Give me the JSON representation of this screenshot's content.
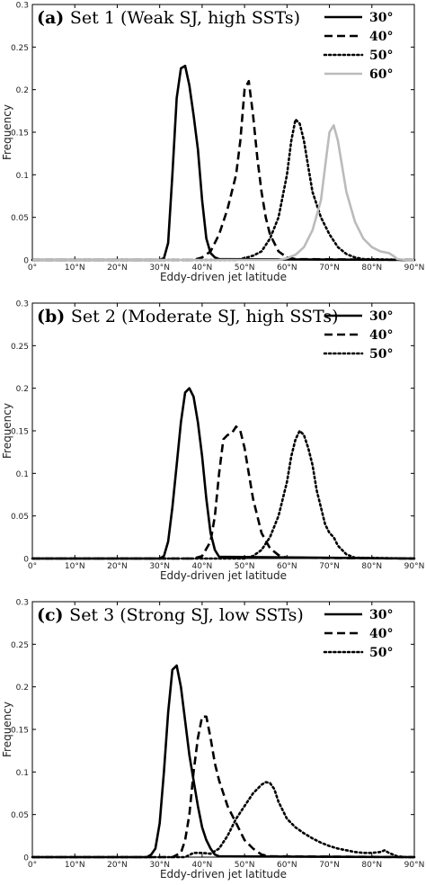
{
  "chart_data": [
    {
      "type": "line",
      "title_tag": "(a)",
      "title": "Set 1 (Weak SJ, high SSTs)",
      "xlabel": "Eddy-driven jet latitude",
      "ylabel": "Frequency",
      "xlim": [
        0,
        90
      ],
      "ylim": [
        0,
        0.3
      ],
      "xticks": [
        "0°",
        "10°N",
        "20°N",
        "30°N",
        "40°N",
        "50°N",
        "60°N",
        "70°N",
        "80°N",
        "90°N"
      ],
      "yticks": [
        "0",
        "0.05",
        "0.1",
        "0.15",
        "0.2",
        "0.25",
        "0.3"
      ],
      "legend_position": "top-right",
      "series": [
        {
          "name": "30°",
          "style": "solid",
          "color": "#000000",
          "x": [
            0,
            30,
            31,
            32,
            33,
            34,
            35,
            36,
            37,
            38,
            39,
            40,
            41,
            42,
            43,
            44,
            90
          ],
          "y": [
            0,
            0,
            0.002,
            0.02,
            0.1,
            0.19,
            0.225,
            0.228,
            0.205,
            0.17,
            0.13,
            0.07,
            0.025,
            0.008,
            0.003,
            0.001,
            0
          ]
        },
        {
          "name": "40°",
          "style": "dashed",
          "color": "#000000",
          "x": [
            0,
            38,
            40,
            42,
            44,
            46,
            48,
            49,
            50,
            51,
            52,
            53,
            54,
            55,
            56,
            58,
            60,
            62,
            90
          ],
          "y": [
            0,
            0,
            0.003,
            0.01,
            0.03,
            0.06,
            0.1,
            0.14,
            0.2,
            0.21,
            0.17,
            0.12,
            0.08,
            0.05,
            0.03,
            0.01,
            0.003,
            0.001,
            0
          ]
        },
        {
          "name": "50°",
          "style": "dotted",
          "color": "#000000",
          "x": [
            0,
            48,
            50,
            52,
            54,
            56,
            58,
            60,
            61,
            62,
            63,
            64,
            65,
            66,
            68,
            70,
            72,
            74,
            76,
            78,
            90
          ],
          "y": [
            0,
            0,
            0.002,
            0.005,
            0.01,
            0.025,
            0.05,
            0.1,
            0.14,
            0.165,
            0.16,
            0.14,
            0.11,
            0.08,
            0.05,
            0.03,
            0.015,
            0.007,
            0.003,
            0.001,
            0
          ]
        },
        {
          "name": "60°",
          "style": "solid",
          "color": "#bbbbbb",
          "x": [
            0,
            58,
            60,
            62,
            64,
            66,
            68,
            69,
            70,
            71,
            72,
            73,
            74,
            76,
            78,
            80,
            82,
            84,
            85,
            86,
            88,
            90
          ],
          "y": [
            0,
            0,
            0.002,
            0.006,
            0.015,
            0.035,
            0.07,
            0.11,
            0.15,
            0.158,
            0.14,
            0.11,
            0.08,
            0.045,
            0.025,
            0.015,
            0.01,
            0.008,
            0.005,
            0.001,
            0,
            0
          ]
        }
      ]
    },
    {
      "type": "line",
      "title_tag": "(b)",
      "title": "Set 2 (Moderate SJ, high SSTs)",
      "xlabel": "Eddy-driven jet latitude",
      "ylabel": "Frequency",
      "xlim": [
        0,
        90
      ],
      "ylim": [
        0,
        0.3
      ],
      "xticks": [
        "0°",
        "10°N",
        "20°N",
        "30°N",
        "40°N",
        "50°N",
        "60°N",
        "70°N",
        "80°N",
        "90°N"
      ],
      "yticks": [
        "0",
        "0.05",
        "0.1",
        "0.15",
        "0.2",
        "0.25",
        "0.3"
      ],
      "legend_position": "top-right",
      "series": [
        {
          "name": "30°",
          "style": "solid",
          "color": "#000000",
          "x": [
            0,
            30,
            31,
            32,
            33,
            34,
            35,
            36,
            37,
            38,
            39,
            40,
            41,
            42,
            43,
            44,
            90
          ],
          "y": [
            0,
            0,
            0.003,
            0.02,
            0.06,
            0.11,
            0.16,
            0.195,
            0.2,
            0.19,
            0.16,
            0.12,
            0.07,
            0.03,
            0.01,
            0.002,
            0
          ]
        },
        {
          "name": "40°",
          "style": "dashed",
          "color": "#000000",
          "x": [
            0,
            38,
            40,
            42,
            43,
            44,
            45,
            46,
            47,
            48,
            49,
            50,
            51,
            52,
            53,
            54,
            56,
            58,
            60,
            90
          ],
          "y": [
            0,
            0,
            0.003,
            0.02,
            0.05,
            0.1,
            0.14,
            0.145,
            0.147,
            0.155,
            0.15,
            0.13,
            0.1,
            0.07,
            0.05,
            0.03,
            0.012,
            0.004,
            0.001,
            0
          ]
        },
        {
          "name": "50°",
          "style": "dotted",
          "color": "#000000",
          "x": [
            0,
            50,
            52,
            54,
            56,
            58,
            60,
            61,
            62,
            63,
            64,
            65,
            66,
            67,
            68,
            69,
            70,
            71,
            72,
            74,
            76,
            90
          ],
          "y": [
            0,
            0,
            0.003,
            0.01,
            0.025,
            0.05,
            0.09,
            0.12,
            0.14,
            0.15,
            0.145,
            0.13,
            0.11,
            0.08,
            0.06,
            0.04,
            0.03,
            0.025,
            0.015,
            0.005,
            0.001,
            0
          ]
        }
      ]
    },
    {
      "type": "line",
      "title_tag": "(c)",
      "title": "Set 3 (Strong SJ, low SSTs)",
      "xlabel": "Eddy-driven jet latitude",
      "ylabel": "Frequency",
      "xlim": [
        0,
        90
      ],
      "ylim": [
        0,
        0.3
      ],
      "xticks": [
        "0°",
        "10°N",
        "20°N",
        "30°N",
        "40°N",
        "50°N",
        "60°N",
        "70°N",
        "80°N",
        "90°N"
      ],
      "yticks": [
        "0",
        "0.05",
        "0.1",
        "0.15",
        "0.2",
        "0.25",
        "0.3"
      ],
      "legend_position": "top-right",
      "series": [
        {
          "name": "30°",
          "style": "solid",
          "color": "#000000",
          "x": [
            0,
            27,
            28,
            29,
            30,
            31,
            32,
            33,
            34,
            35,
            36,
            37,
            38,
            39,
            40,
            41,
            42,
            43,
            44,
            90
          ],
          "y": [
            0,
            0,
            0.003,
            0.01,
            0.04,
            0.1,
            0.17,
            0.22,
            0.225,
            0.2,
            0.16,
            0.12,
            0.09,
            0.06,
            0.035,
            0.02,
            0.01,
            0.003,
            0.001,
            0
          ]
        },
        {
          "name": "40°",
          "style": "dashed",
          "color": "#000000",
          "x": [
            0,
            33,
            35,
            36,
            37,
            38,
            39,
            40,
            41,
            42,
            43,
            44,
            45,
            46,
            47,
            48,
            49,
            50,
            52,
            54,
            56,
            90
          ],
          "y": [
            0,
            0,
            0.005,
            0.02,
            0.05,
            0.1,
            0.14,
            0.165,
            0.165,
            0.14,
            0.11,
            0.09,
            0.075,
            0.06,
            0.05,
            0.04,
            0.03,
            0.02,
            0.01,
            0.003,
            0.001,
            0
          ]
        },
        {
          "name": "50°",
          "style": "dotted",
          "color": "#000000",
          "x": [
            0,
            36,
            38,
            40,
            42,
            44,
            46,
            48,
            50,
            52,
            54,
            55,
            56,
            57,
            58,
            60,
            62,
            64,
            66,
            68,
            70,
            72,
            74,
            76,
            78,
            80,
            82,
            83,
            84,
            85,
            86,
            88,
            90
          ],
          "y": [
            0,
            0,
            0.005,
            0.005,
            0.004,
            0.01,
            0.025,
            0.045,
            0.06,
            0.075,
            0.085,
            0.088,
            0.087,
            0.08,
            0.065,
            0.045,
            0.035,
            0.028,
            0.022,
            0.017,
            0.013,
            0.01,
            0.008,
            0.006,
            0.005,
            0.005,
            0.006,
            0.008,
            0.005,
            0.003,
            0.001,
            0,
            0
          ]
        }
      ]
    }
  ]
}
